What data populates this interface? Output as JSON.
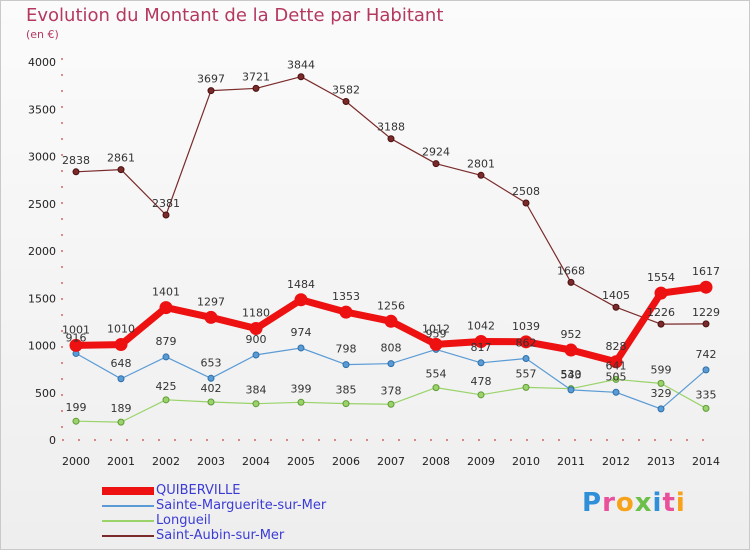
{
  "header": {
    "title": "Evolution du Montant de la Dette par Habitant",
    "subtitle": "(en €)"
  },
  "logo": {
    "text": "Proxiti"
  },
  "colors": {
    "title": "#b5395f",
    "legend_text": "#3b3bd6",
    "QUIBERVILLE": "#ee1111",
    "Sainte-Marguerite-sur-Mer": "#5b9bd5",
    "Longueil": "#9ad36a",
    "Saint-Aubin-sur-Mer": "#7a2a2a"
  },
  "chart_data": {
    "type": "line",
    "x": [
      "2000",
      "2001",
      "2002",
      "2003",
      "2004",
      "2005",
      "2006",
      "2007",
      "2008",
      "2009",
      "2010",
      "2011",
      "2012",
      "2013",
      "2014"
    ],
    "yticks": [
      "0",
      "500",
      "1000",
      "1500",
      "2000",
      "2500",
      "3000",
      "3500",
      "4000"
    ],
    "ylim": [
      0,
      4000
    ],
    "grid": false,
    "legend_position": "bottom-left",
    "series": [
      {
        "name": "QUIBERVILLE",
        "values": [
          1001,
          1010,
          1401,
          1297,
          1180,
          1484,
          1353,
          1256,
          1012,
          1042,
          1039,
          952,
          828,
          1554,
          1617
        ]
      },
      {
        "name": "Sainte-Marguerite-sur-Mer",
        "values": [
          916,
          648,
          879,
          653,
          900,
          974,
          798,
          808,
          959,
          817,
          862,
          530,
          505,
          329,
          742
        ]
      },
      {
        "name": "Longueil",
        "values": [
          199,
          189,
          425,
          402,
          384,
          399,
          385,
          378,
          554,
          478,
          557,
          543,
          641,
          599,
          335
        ]
      },
      {
        "name": "Saint-Aubin-sur-Mer",
        "values": [
          2838,
          2861,
          2381,
          3697,
          3721,
          3844,
          3582,
          3188,
          2924,
          2801,
          2508,
          1668,
          1405,
          1226,
          1229
        ]
      }
    ]
  }
}
